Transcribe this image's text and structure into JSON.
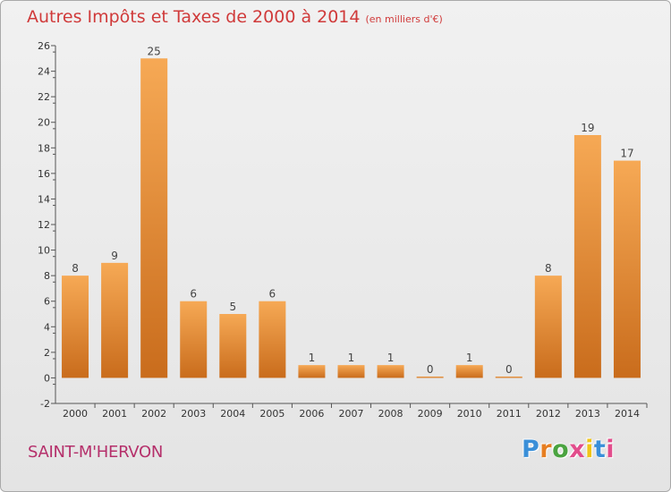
{
  "header": {
    "title": "Autres Impôts et Taxes de 2000 à 2014",
    "subtitle": "(en milliers d'€)"
  },
  "footer": {
    "commune": "SAINT-M'HERVON",
    "logo_letters": [
      "P",
      "r",
      "o",
      "x",
      "i",
      "t",
      "i"
    ],
    "logo_colors": [
      "#3a8fd8",
      "#e67e22",
      "#4aa340",
      "#e24d8c",
      "#f0c419",
      "#3a8fd8",
      "#e24d8c"
    ]
  },
  "colors": {
    "bar_light": "#f6a955",
    "bar_dark": "#c96c1c",
    "axis": "#555555",
    "title": "#d03a3a",
    "commune": "#b5306b"
  },
  "chart_data": {
    "type": "bar",
    "title": "Autres Impôts et Taxes de 2000 à 2014",
    "subtitle": "(en milliers d'€)",
    "categories": [
      "2000",
      "2001",
      "2002",
      "2003",
      "2004",
      "2005",
      "2006",
      "2007",
      "2008",
      "2009",
      "2010",
      "2011",
      "2012",
      "2013",
      "2014"
    ],
    "values": [
      8,
      9,
      25,
      6,
      5,
      6,
      1,
      1,
      1,
      0,
      1,
      0,
      8,
      19,
      17
    ],
    "data_labels": [
      "8",
      "9",
      "25",
      "6",
      "5",
      "6",
      "1",
      "1",
      "1",
      "0",
      "1",
      "0",
      "8",
      "19",
      "17"
    ],
    "ylim": [
      -2,
      26
    ],
    "yticks": [
      -2,
      0,
      2,
      4,
      6,
      8,
      10,
      12,
      14,
      16,
      18,
      20,
      22,
      24,
      26
    ],
    "xlabel": "",
    "ylabel": "",
    "grid": false,
    "legend": "none"
  }
}
